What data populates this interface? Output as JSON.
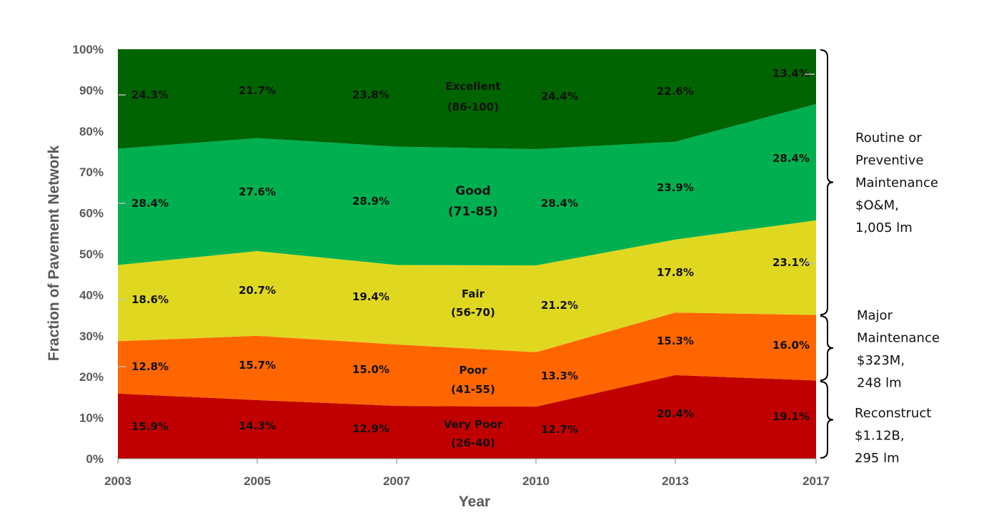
{
  "chart_data": {
    "type": "area",
    "stacked": true,
    "x": [
      "2003",
      "2005",
      "2007",
      "2010",
      "2013",
      "2017"
    ],
    "xlabel": "Year",
    "ylabel": "Fraction of Pavement Network",
    "ylim": [
      0,
      100
    ],
    "yticks": [
      "0%",
      "10%",
      "20%",
      "30%",
      "40%",
      "50%",
      "60%",
      "70%",
      "80%",
      "90%",
      "100%"
    ],
    "grid": false,
    "series": [
      {
        "name": "Very Poor",
        "range": "(26-40)",
        "color": "#c00000",
        "values": [
          15.9,
          14.3,
          12.9,
          12.7,
          20.4,
          19.1
        ],
        "labels": [
          "15.9%",
          "14.3%",
          "12.9%",
          "12.7%",
          "20.4%",
          "19.1%"
        ]
      },
      {
        "name": "Poor",
        "range": "(41-55)",
        "color": "#ff6600",
        "values": [
          12.8,
          15.7,
          15.0,
          13.3,
          15.3,
          16.0
        ],
        "labels": [
          "12.8%",
          "15.7%",
          "15.0%",
          "13.3%",
          "15.3%",
          "16.0%"
        ]
      },
      {
        "name": "Fair",
        "range": "(56-70)",
        "color": "#e0d820",
        "values": [
          18.6,
          20.7,
          19.4,
          21.2,
          17.8,
          23.1
        ],
        "labels": [
          "18.6%",
          "20.7%",
          "19.4%",
          "21.2%",
          "17.8%",
          "23.1%"
        ]
      },
      {
        "name": "Good",
        "range": "(71-85)",
        "color": "#00b050",
        "values": [
          28.4,
          27.6,
          28.9,
          28.4,
          23.9,
          28.4
        ],
        "labels": [
          "28.4%",
          "27.6%",
          "28.9%",
          "28.4%",
          "23.9%",
          "28.4%"
        ]
      },
      {
        "name": "Excellent",
        "range": "(86-100)",
        "color": "#006400",
        "values": [
          24.3,
          21.7,
          23.8,
          24.4,
          22.6,
          13.4
        ],
        "labels": [
          "24.3%",
          "21.7%",
          "23.8%",
          "24.4%",
          "22.6%",
          "13.4%"
        ]
      }
    ],
    "annotations": [
      {
        "lines": [
          "Routine or",
          "Preventive",
          "Maintenance",
          "$O&M,",
          "1,005 lm"
        ],
        "range": [
          35,
          100
        ]
      },
      {
        "lines": [
          "Major",
          "Maintenance",
          "$323M,",
          "248 lm"
        ],
        "range": [
          19,
          35
        ]
      },
      {
        "lines": [
          "Reconstruct",
          "$1.12B,",
          "295 lm"
        ],
        "range": [
          0,
          19
        ]
      }
    ]
  }
}
